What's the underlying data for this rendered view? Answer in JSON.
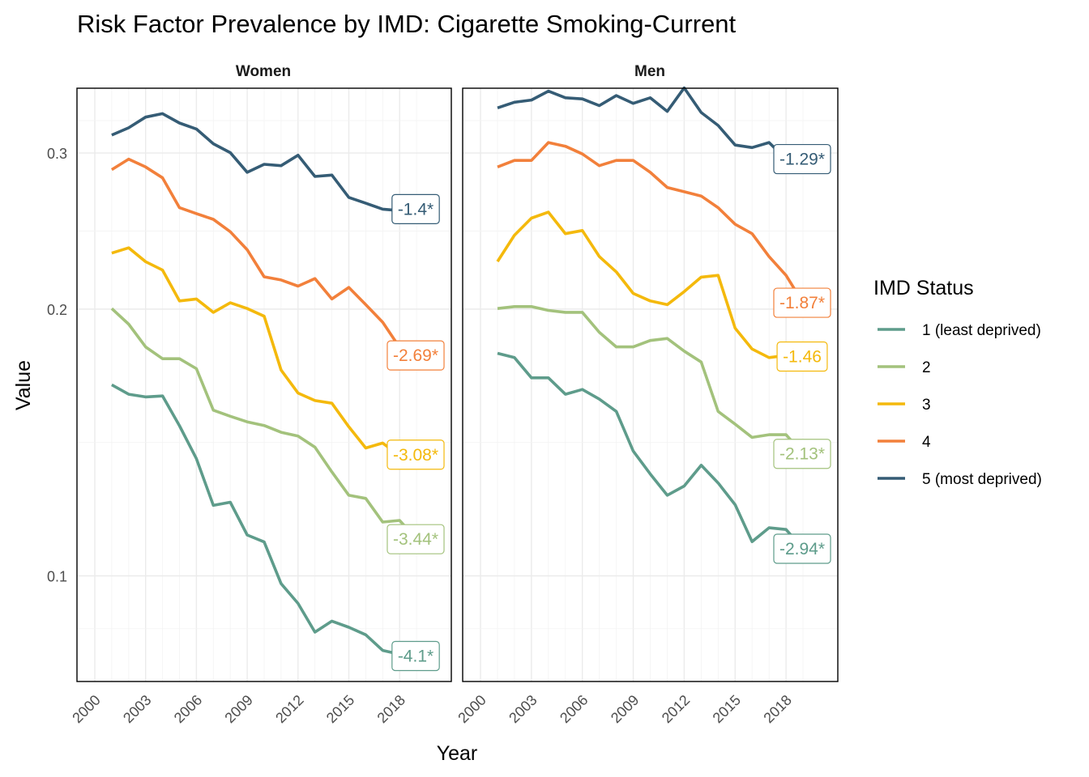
{
  "chart_data": {
    "type": "line",
    "title": "Risk Factor Prevalence by IMD: Cigarette Smoking-Current",
    "xlabel": "Year",
    "ylabel": "Value",
    "y_scale": "log",
    "ylim": [
      0.076,
      0.355
    ],
    "y_ticks": [
      0.1,
      0.2,
      0.3
    ],
    "y_tick_labels": [
      "0.1",
      "0.2",
      "0.3"
    ],
    "xlim": [
      2000,
      2020
    ],
    "x_ticks": [
      2000,
      2003,
      2006,
      2009,
      2012,
      2015,
      2018
    ],
    "x_tick_labels": [
      "2000",
      "2003",
      "2006",
      "2009",
      "2012",
      "2015",
      "2018"
    ],
    "legend": {
      "title": "IMD Status",
      "position": "right",
      "entries": [
        "1 (least deprived)",
        "2",
        "3",
        "4",
        "5 (most deprived)"
      ]
    },
    "colors": {
      "1 (least deprived)": "#5e9c8b",
      "2": "#a3c27c",
      "3": "#f4b90c",
      "4": "#f2803b",
      "5 (most deprived)": "#355c75"
    },
    "panels": [
      {
        "facet": "Women",
        "x": [
          2001,
          2002,
          2003,
          2004,
          2005,
          2006,
          2007,
          2008,
          2009,
          2010,
          2011,
          2012,
          2013,
          2014,
          2015,
          2016,
          2017,
          2018,
          2019
        ],
        "series": [
          {
            "name": "1 (least deprived)",
            "values": [
              0.1643,
              0.1603,
              0.1592,
              0.1596,
              0.1477,
              0.1356,
              0.1201,
              0.1211,
              0.1112,
              0.1092,
              0.098,
              0.0931,
              0.0864,
              0.0889,
              0.0875,
              0.0858,
              0.0824,
              0.0816,
              0.0812
            ],
            "label": "-4.1*"
          },
          {
            "name": "2",
            "values": [
              0.2003,
              0.1923,
              0.1813,
              0.1758,
              0.1758,
              0.1713,
              0.1538,
              0.1514,
              0.1492,
              0.1478,
              0.1452,
              0.1438,
              0.1397,
              0.131,
              0.1233,
              0.1223,
              0.115,
              0.1155,
              0.11
            ],
            "label": "-3.44*"
          },
          {
            "name": "3",
            "values": [
              0.2313,
              0.2345,
              0.2262,
              0.2213,
              0.2043,
              0.2053,
              0.1983,
              0.2033,
              0.2003,
              0.1963,
              0.1707,
              0.1608,
              0.1577,
              0.1566,
              0.1473,
              0.1394,
              0.1412,
              0.1366,
              0.137
            ],
            "label": "-3.08*"
          },
          {
            "name": "4",
            "values": [
              0.2873,
              0.2953,
              0.2893,
              0.2813,
              0.2603,
              0.2563,
              0.2525,
              0.2445,
              0.2333,
              0.2175,
              0.2157,
              0.2123,
              0.2165,
              0.2053,
              0.2116,
              0.2023,
              0.1933,
              0.181,
              0.1773
            ],
            "label": "-2.69*"
          },
          {
            "name": "5 (most deprived)",
            "values": [
              0.3143,
              0.3203,
              0.3293,
              0.3323,
              0.3243,
              0.3193,
              0.3073,
              0.3003,
              0.2853,
              0.2913,
              0.2903,
              0.2983,
              0.2823,
              0.2833,
              0.2673,
              0.2633,
              0.2593,
              0.2583,
              0.2593
            ],
            "label": "-1.4*"
          }
        ]
      },
      {
        "facet": "Men",
        "x": [
          2001,
          2002,
          2003,
          2004,
          2005,
          2006,
          2007,
          2008,
          2009,
          2010,
          2011,
          2012,
          2013,
          2014,
          2015,
          2016,
          2017,
          2018,
          2019
        ],
        "series": [
          {
            "name": "1 (least deprived)",
            "values": [
              0.1783,
              0.1763,
              0.1673,
              0.1673,
              0.1603,
              0.1623,
              0.1583,
              0.1533,
              0.1383,
              0.1303,
              0.1233,
              0.1263,
              0.1333,
              0.1273,
              0.1203,
              0.1093,
              0.1133,
              0.1128,
              0.1073
            ],
            "label": "-2.94*"
          },
          {
            "name": "2",
            "values": [
              0.2003,
              0.2013,
              0.2013,
              0.1993,
              0.1983,
              0.1983,
              0.1883,
              0.1813,
              0.1813,
              0.1843,
              0.1853,
              0.1793,
              0.1743,
              0.1533,
              0.1483,
              0.1433,
              0.1443,
              0.1443,
              0.1373
            ],
            "label": "-2.13*"
          },
          {
            "name": "3",
            "values": [
              0.2263,
              0.2423,
              0.2533,
              0.2573,
              0.2433,
              0.2453,
              0.2293,
              0.2203,
              0.2083,
              0.2043,
              0.2023,
              0.2093,
              0.2173,
              0.2183,
              0.1903,
              0.1803,
              0.1763,
              0.1773,
              0.1768
            ],
            "label": "-1.46"
          },
          {
            "name": "4",
            "values": [
              0.2893,
              0.2943,
              0.2943,
              0.3083,
              0.3053,
              0.2993,
              0.2903,
              0.2943,
              0.2943,
              0.2853,
              0.2743,
              0.2713,
              0.2683,
              0.2603,
              0.2493,
              0.2433,
              0.2293,
              0.2183,
              0.2033
            ],
            "label": "-1.87*"
          },
          {
            "name": "5 (most deprived)",
            "values": [
              0.3373,
              0.3423,
              0.3443,
              0.3523,
              0.3463,
              0.3453,
              0.3393,
              0.3483,
              0.3413,
              0.3463,
              0.3343,
              0.3553,
              0.3333,
              0.3223,
              0.3063,
              0.3043,
              0.3083,
              0.2953,
              0.2953
            ],
            "label": "-1.29*"
          }
        ]
      }
    ]
  }
}
